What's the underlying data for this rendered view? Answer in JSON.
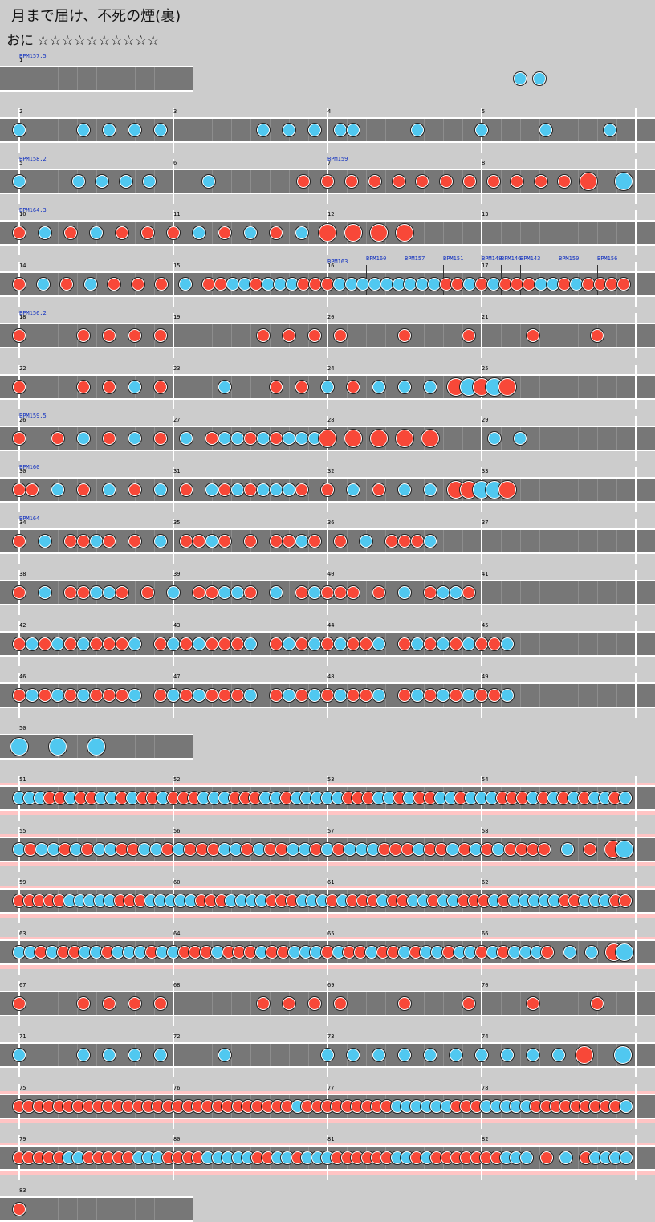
{
  "title": "月まで届け、不死の煙(裏)",
  "difficulty": {
    "label": "おに",
    "stars": "☆☆☆☆☆☆☆☆☆☆"
  },
  "colors": {
    "don": "#f84838",
    "ka": "#50c8f0",
    "lane": "#777777",
    "roll_highlight": "#ffc4c4"
  },
  "rows": [
    {
      "measures": 1,
      "first": 1,
      "labels": [
        {
          "m": 0,
          "t": "BPM157.5"
        }
      ],
      "notes": "00000000000000000000000000kk"
    },
    {
      "measures": 4,
      "first": 2,
      "notes": "k0000k0k0k0k0000000k0k0k0kk0000k0000k0000k0000k"
    },
    {
      "measures": 4,
      "first": 5,
      "labels": [
        {
          "m": 0,
          "t": "BPM158.2"
        },
        {
          "m": 2,
          "t": "BPM159"
        }
      ],
      "notes": "k0000k0k0k0k0000k0000000d0d0d0d0d0d0d0d0d0d0d0d0D00K"
    },
    {
      "measures": 4,
      "first": 10,
      "labels": [
        {
          "m": 0,
          "t": "BPM164.3"
        }
      ],
      "notes": "d0k0d0k0d0d0d0k0d0k0d0k0D0D0D0D"
    },
    {
      "measures": 4,
      "first": 14,
      "labels": [
        {
          "m": 2,
          "t": "BPM163"
        },
        {
          "m": 2.25,
          "t": "BPM160"
        },
        {
          "m": 2.5,
          "t": "BPM157"
        },
        {
          "m": 2.75,
          "t": "BPM151"
        },
        {
          "m": 3,
          "t": "BPM148"
        },
        {
          "m": 3.125,
          "t": "BPM146"
        },
        {
          "m": 3.25,
          "t": "BPM143"
        },
        {
          "m": 3.5,
          "t": "BPM150"
        },
        {
          "m": 3.75,
          "t": "BPM156"
        }
      ],
      "notes": "d0k0d0k0d0d0d0k0ddkkdkkkdddkkkkkkkkkddkdkdddkkdkdddd"
    },
    {
      "measures": 4,
      "first": 18,
      "labels": [
        {
          "m": 0,
          "t": "BPM156.2"
        }
      ],
      "notes": "d0000d0d0d0d0000000d0d0d0d0000d0000d0000d0000d"
    },
    {
      "measures": 4,
      "first": 22,
      "notes": "d0000d0d0k0d0000k000d0d0k0d0k0k0k0DKDKD"
    },
    {
      "measures": 4,
      "first": 26,
      "labels": [
        {
          "m": 0,
          "t": "BPM159.5"
        }
      ],
      "notes": "d00d0k0d0k0d0k0dkkdkdkkkD0D0D0D0D0000k0k"
    },
    {
      "measures": 4,
      "first": 30,
      "labels": [
        {
          "m": 0,
          "t": "BPM160"
        }
      ],
      "notes": "dd0k0d0k0d0k0d0kdkdkkkd0d0k0d0k0k0DDKKD"
    },
    {
      "measures": 4,
      "first": 34,
      "labels": [
        {
          "m": 0,
          "t": "BPM164"
        }
      ],
      "notes": "d0k0ddkd0d0k0ddkd0d0ddkd0d0k0dddk"
    },
    {
      "measures": 4,
      "first": 38,
      "notes": "d0k0ddkkd0d0k0ddkkd0k0dkddd0d0k0dkkd"
    },
    {
      "measures": 4,
      "first": 42,
      "notes": "dkdkdkdddk0dkdkdddk0dkdkdkddk0dkdkdkddk"
    },
    {
      "measures": 4,
      "first": 46,
      "notes": "dkdkdkdddk0dkdkdddk0dkdkdkddk0dkdkdkddk"
    },
    {
      "measures": 1,
      "first": 50,
      "notes": "K0K0K"
    },
    {
      "measures": 4,
      "first": 51,
      "highlight": true,
      "notes": "kkkddkddkkdkddkdddkkkdddkkdkkkkkdddkkdkddkkdkkkdddkdkdkdkkdk"
    },
    {
      "measures": 4,
      "first": 55,
      "highlight": true,
      "notes": "kdkkdkdkkddkkdkdddkkdkddkkdkdkkkdddkddkdkdkdddd0k0d0DK"
    },
    {
      "measures": 4,
      "first": 59,
      "highlight": true,
      "notes": "dddddkkkkkdddkkkkkdddkkkkdddkkkdkdddkddkkdkkdddkdkkkkkddkkkdd"
    },
    {
      "measures": 4,
      "first": 63,
      "highlight": true,
      "notes": "kkdkddkkdkkkdkkdddkdddkddkkkdkddkddkdkkdkkdkdkkkd0k0k0DK"
    },
    {
      "measures": 4,
      "first": 67,
      "notes": "d0000d0d0d0d0000000d0d0d0d0000d0000d0000d0000d"
    },
    {
      "measures": 4,
      "first": 71,
      "notes": "k0000k0k0k0k0000k0000000k0k0k0k0k0k0k0k0k0k0D00K"
    },
    {
      "measures": 4,
      "first": 75,
      "highlight": true,
      "notes": "ddddddddddddddddddddddddddddkdddddddddkkkkkkdddkkkkkdddddddddk"
    },
    {
      "measures": 4,
      "first": 79,
      "highlight": true,
      "notes": "dddddkkdddddkkkddddkkkkkddkkdkkkddddddkkdkdddddddkkk0d0k0dkkkk"
    },
    {
      "measures": 1,
      "first": 83,
      "notes": "d"
    }
  ]
}
